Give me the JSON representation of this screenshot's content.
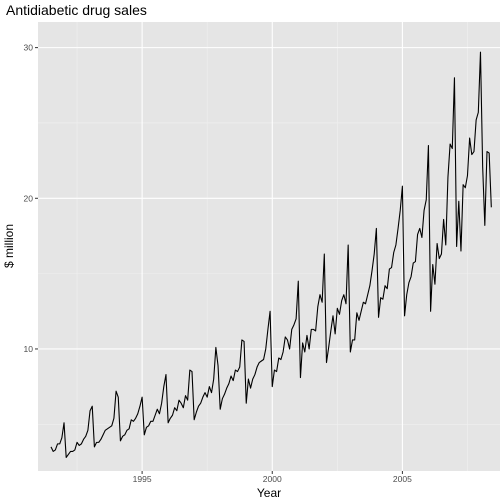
{
  "chart_data": {
    "type": "line",
    "title": "Antidiabetic drug sales",
    "xlabel": "Year",
    "ylabel": "$ million",
    "xlim": [
      1991.0,
      2008.75
    ],
    "ylim": [
      1.9,
      31.7
    ],
    "x_ticks": [
      1995,
      2000,
      2005
    ],
    "y_ticks": [
      10,
      20,
      30
    ],
    "grid": true,
    "background": "#e5e5e5",
    "grid_major_color": "#ffffff",
    "grid_minor_color": "#f0f0f0",
    "line_color": "#000000",
    "series": [
      {
        "x_start": 1991.5,
        "x_step": 0.08333333,
        "values": [
          3.5,
          3.2,
          3.3,
          3.7,
          3.7,
          4.1,
          5.1,
          2.8,
          3.0,
          3.2,
          3.2,
          3.3,
          3.8,
          3.6,
          3.7,
          4.0,
          4.2,
          4.6,
          5.9,
          6.2,
          3.5,
          3.8,
          3.8,
          4.0,
          4.3,
          4.6,
          4.7,
          4.8,
          4.9,
          5.4,
          7.2,
          6.8,
          3.9,
          4.2,
          4.3,
          4.6,
          4.7,
          5.3,
          5.2,
          5.4,
          5.7,
          6.2,
          6.8,
          4.3,
          4.8,
          4.9,
          5.2,
          5.2,
          5.6,
          6.0,
          5.7,
          6.4,
          7.5,
          8.3,
          5.1,
          5.4,
          5.6,
          6.1,
          5.9,
          6.6,
          6.4,
          6.1,
          6.9,
          6.6,
          8.6,
          8.5,
          5.3,
          5.8,
          6.2,
          6.4,
          6.8,
          7.1,
          6.8,
          7.5,
          7.1,
          8.0,
          10.1,
          8.9,
          6.0,
          6.7,
          7.0,
          7.4,
          7.7,
          8.2,
          7.9,
          8.6,
          8.5,
          8.8,
          10.6,
          10.5,
          6.4,
          8.0,
          7.4,
          8.0,
          8.3,
          8.8,
          9.1,
          9.2,
          9.3,
          10.0,
          11.3,
          12.5,
          7.5,
          8.6,
          8.5,
          9.4,
          9.3,
          9.8,
          10.8,
          10.6,
          10.0,
          11.3,
          11.6,
          12.0,
          14.5,
          8.1,
          10.4,
          9.8,
          10.9,
          10.0,
          11.3,
          11.3,
          11.2,
          12.8,
          13.6,
          13.1,
          16.3,
          9.1,
          10.1,
          11.2,
          12.2,
          11.0,
          12.7,
          12.3,
          13.2,
          13.6,
          13.0,
          16.9,
          9.8,
          10.6,
          10.6,
          12.4,
          11.9,
          12.5,
          13.1,
          13.0,
          13.6,
          14.2,
          15.2,
          16.3,
          18.0,
          12.1,
          13.4,
          13.3,
          14.2,
          14.0,
          15.3,
          15.4,
          16.4,
          16.9,
          18.0,
          19.2,
          20.8,
          12.2,
          13.6,
          14.4,
          14.8,
          15.7,
          15.8,
          17.6,
          18.0,
          17.4,
          19.2,
          19.9,
          23.5,
          12.5,
          15.6,
          14.3,
          17.0,
          16.0,
          16.3,
          18.6,
          16.9,
          21.4,
          23.6,
          23.3,
          28.0,
          16.8,
          19.8,
          16.5,
          20.9,
          20.7,
          21.5,
          24.0,
          22.9,
          23.1,
          25.2,
          25.7,
          29.7,
          22.1,
          18.2,
          23.1,
          23.0,
          19.4
        ]
      }
    ]
  }
}
